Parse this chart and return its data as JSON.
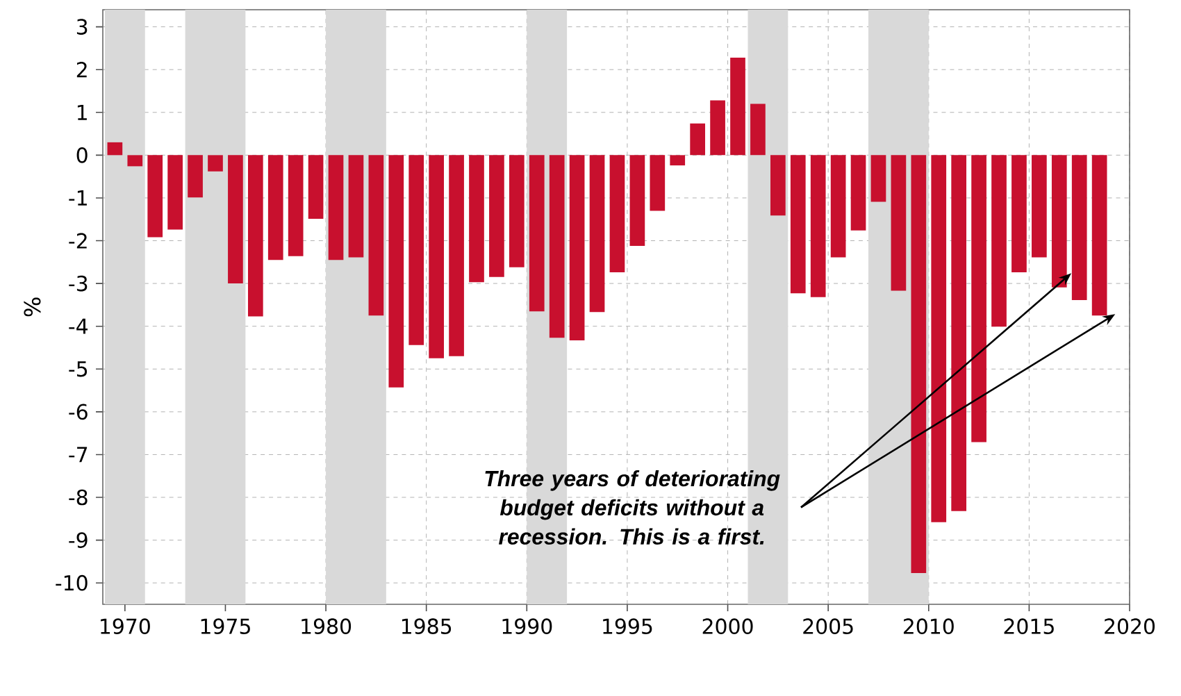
{
  "chart_data": {
    "type": "bar",
    "ylabel": "%",
    "x": [
      1969.5,
      1970.5,
      1971.5,
      1972.5,
      1973.5,
      1974.5,
      1975.5,
      1976.5,
      1977.5,
      1978.5,
      1979.5,
      1980.5,
      1981.5,
      1982.5,
      1983.5,
      1984.5,
      1985.5,
      1986.5,
      1987.5,
      1988.5,
      1989.5,
      1990.5,
      1991.5,
      1992.5,
      1993.5,
      1994.5,
      1995.5,
      1996.5,
      1997.5,
      1998.5,
      1999.5,
      2000.5,
      2001.5,
      2002.5,
      2003.5,
      2004.5,
      2005.5,
      2006.5,
      2007.5,
      2008.5,
      2009.5,
      2010.5,
      2011.5,
      2012.5,
      2013.5,
      2014.5,
      2015.5,
      2016.5,
      2017.5,
      2018.5
    ],
    "values": [
      0.3,
      -0.26,
      -1.92,
      -1.74,
      -0.99,
      -0.38,
      -3.0,
      -3.77,
      -2.45,
      -2.36,
      -1.49,
      -2.45,
      -2.39,
      -3.75,
      -5.43,
      -4.44,
      -4.75,
      -4.7,
      -2.97,
      -2.85,
      -2.62,
      -3.65,
      -4.27,
      -4.33,
      -3.67,
      -2.74,
      -2.12,
      -1.3,
      -0.24,
      0.74,
      1.28,
      2.28,
      1.2,
      -1.41,
      -3.23,
      -3.32,
      -2.39,
      -1.76,
      -1.09,
      -3.17,
      -9.77,
      -8.58,
      -8.32,
      -6.71,
      -4.01,
      -2.74,
      -2.39,
      -3.09,
      -3.39,
      -3.75
    ],
    "color": "#c8102e",
    "xlim": [
      1968.9,
      2020
    ],
    "xticks": [
      1970,
      1975,
      1980,
      1985,
      1990,
      1995,
      2000,
      2005,
      2010,
      2015,
      2020
    ],
    "ylim": [
      -10.5,
      3.4
    ],
    "yticks": [
      -10,
      -9,
      -8,
      -7,
      -6,
      -5,
      -4,
      -3,
      -2,
      -1,
      0,
      1,
      2,
      3
    ],
    "grid": true,
    "bands": [
      {
        "axis": "x",
        "from": 1969,
        "to": 1971,
        "color": "#d9d9d9"
      },
      {
        "axis": "x",
        "from": 1973,
        "to": 1976,
        "color": "#d9d9d9"
      },
      {
        "axis": "x",
        "from": 1980,
        "to": 1983,
        "color": "#d9d9d9"
      },
      {
        "axis": "x",
        "from": 1990,
        "to": 1992,
        "color": "#d9d9d9"
      },
      {
        "axis": "x",
        "from": 2001,
        "to": 2003,
        "color": "#d9d9d9"
      },
      {
        "axis": "x",
        "from": 2007,
        "to": 2010,
        "color": "#d9d9d9"
      }
    ],
    "annotations": [
      {
        "text": "Three years of deteriorating budget deficits without a recession. This is a first.",
        "x": 2017.1,
        "y": -2.76
      }
    ]
  }
}
